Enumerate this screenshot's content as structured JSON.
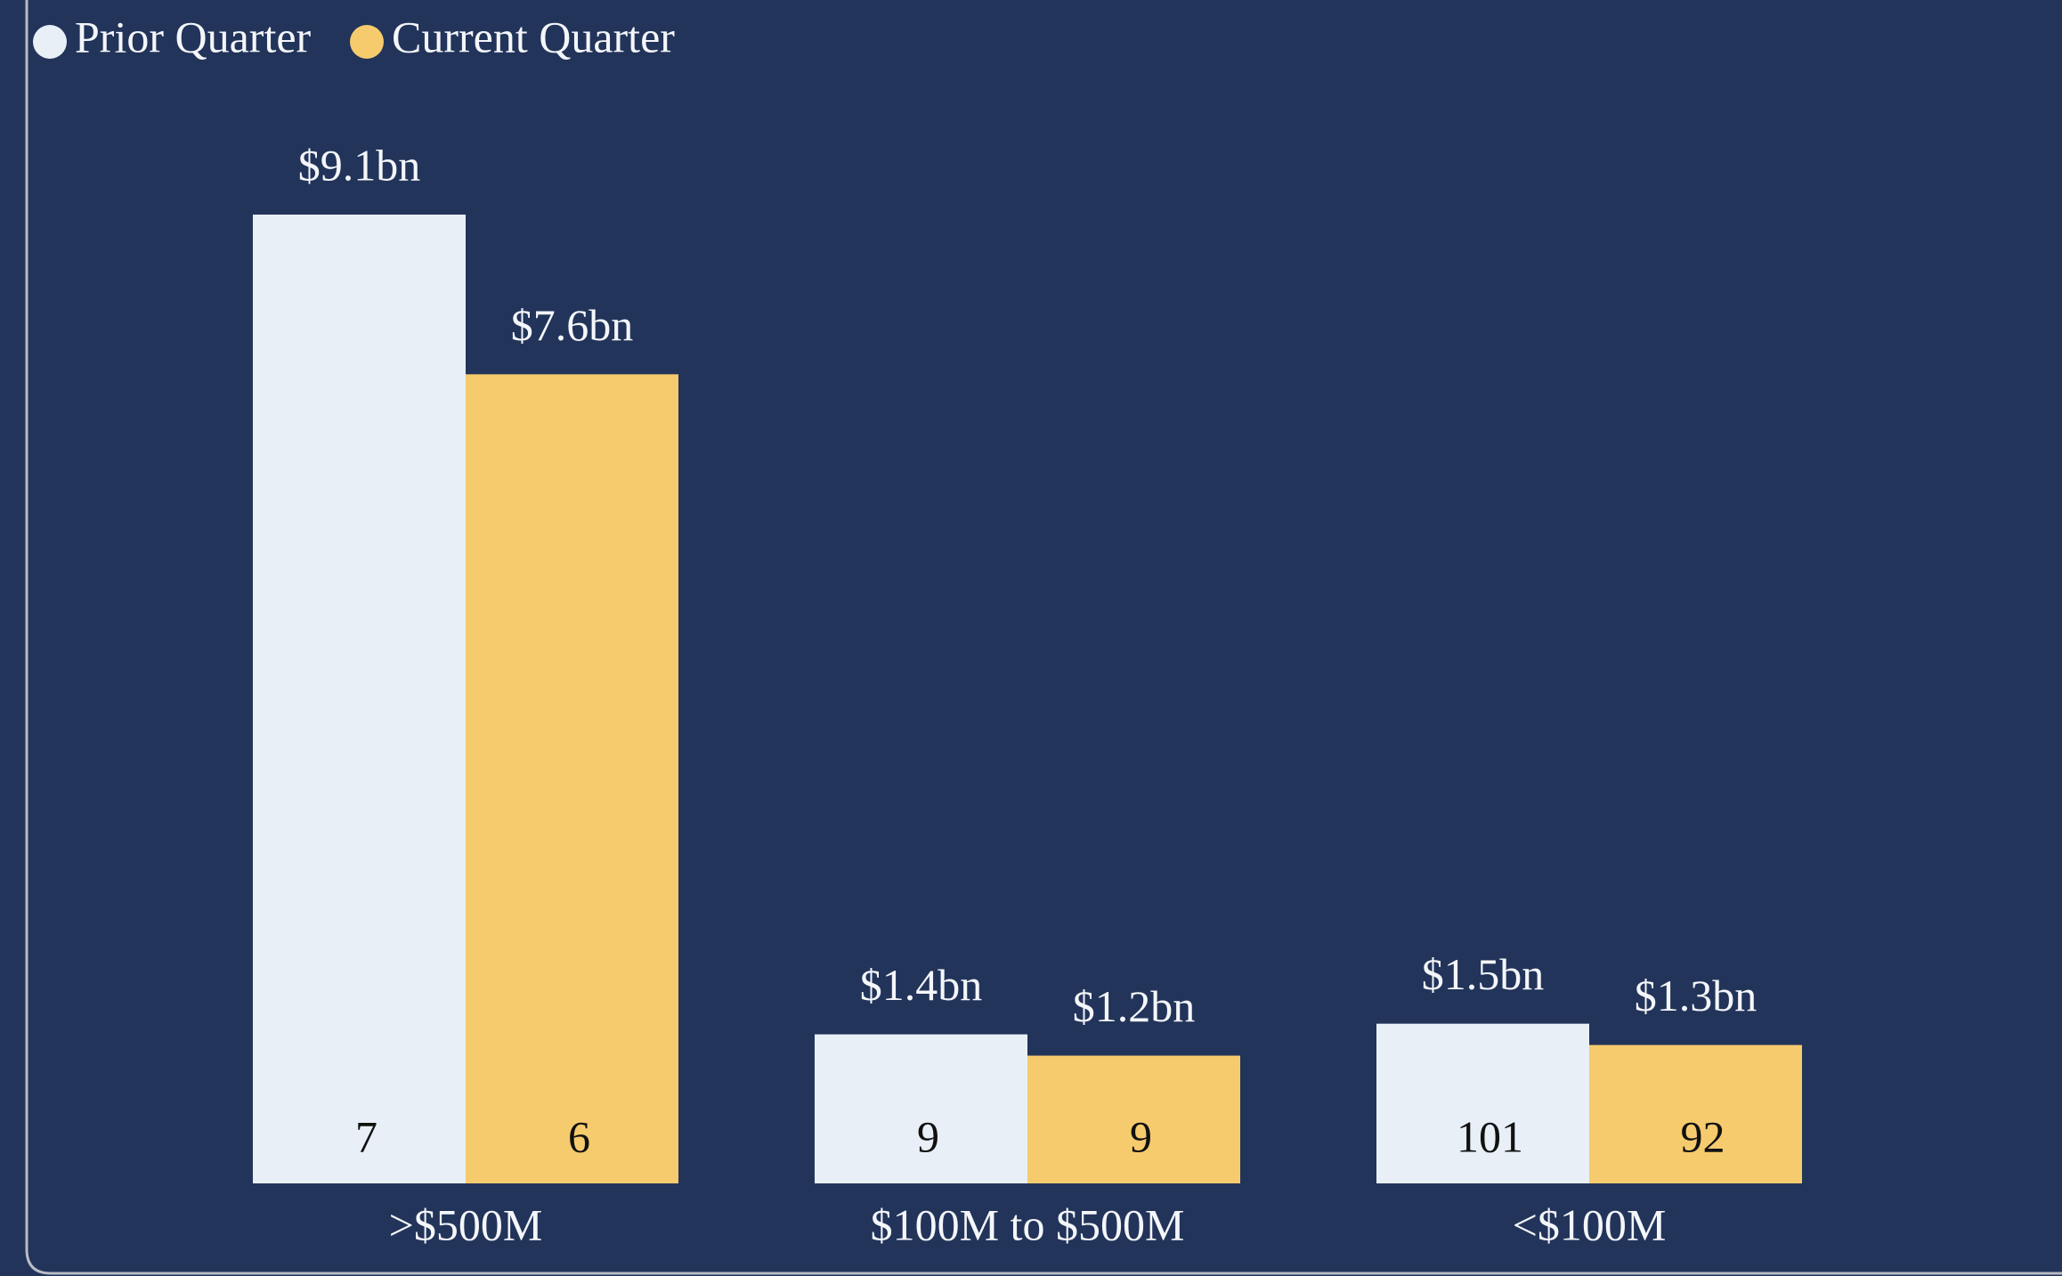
{
  "chart_data": {
    "type": "bar",
    "legend": "top-left",
    "categories": [
      ">$500M",
      "$100M to $500M",
      "<$100M"
    ],
    "series": [
      {
        "name": "Prior Quarter",
        "color": "#e8eff7",
        "values": [
          9.1,
          1.4,
          1.5
        ],
        "value_labels": [
          "$9.1bn",
          "$1.4bn",
          "$1.5bn"
        ],
        "counts": [
          7,
          9,
          101
        ]
      },
      {
        "name": "Current Quarter",
        "color": "#f6cb6e",
        "values": [
          7.6,
          1.2,
          1.3
        ],
        "value_labels": [
          "$7.6bn",
          "$1.2bn",
          "$1.3bn"
        ],
        "counts": [
          6,
          9,
          92
        ]
      }
    ]
  }
}
